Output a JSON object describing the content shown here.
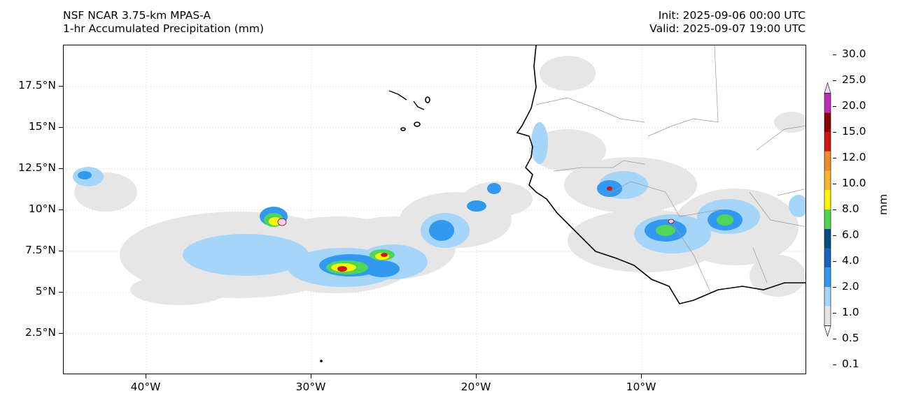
{
  "header": {
    "model": "NSF NCAR 3.75-km MPAS-A",
    "field": "1-hr Accumulated Precipitation (mm)",
    "init": "Init: 2025-09-06 00:00 UTC",
    "valid": "Valid: 2025-09-07 19:00 UTC"
  },
  "map": {
    "extent": {
      "lon_min": -45,
      "lon_max": 0,
      "lat_min": 0,
      "lat_max": 20
    },
    "lat_ticks": [
      {
        "value": 17.5,
        "label": "17.5°N"
      },
      {
        "value": 15,
        "label": "15°N"
      },
      {
        "value": 12.5,
        "label": "12.5°N"
      },
      {
        "value": 10,
        "label": "10°N"
      },
      {
        "value": 7.5,
        "label": "7.5°N"
      },
      {
        "value": 5,
        "label": "5°N"
      },
      {
        "value": 2.5,
        "label": "2.5°N"
      }
    ],
    "lon_ticks": [
      {
        "value": -40,
        "label": "40°W"
      },
      {
        "value": -30,
        "label": "30°W"
      },
      {
        "value": -20,
        "label": "20°W"
      },
      {
        "value": -10,
        "label": "10°W"
      }
    ],
    "gridlines": true,
    "coastline_color": "#000000",
    "border_color": "#999999"
  },
  "colorbar": {
    "title": "mm",
    "levels": [
      "0.1",
      "0.5",
      "1.0",
      "2.0",
      "4.0",
      "6.0",
      "8.0",
      "10.0",
      "12.0",
      "15.0",
      "20.0",
      "25.0",
      "30.0"
    ],
    "colors": [
      "#e6e6e6",
      "#a6d5fa",
      "#3399f0",
      "#1565c0",
      "#054d80",
      "#4fd659",
      "#fff700",
      "#f5b72e",
      "#f08c2d",
      "#d11414",
      "#8c0000",
      "#b82eb8",
      "#ffccff"
    ],
    "extend": "both"
  }
}
